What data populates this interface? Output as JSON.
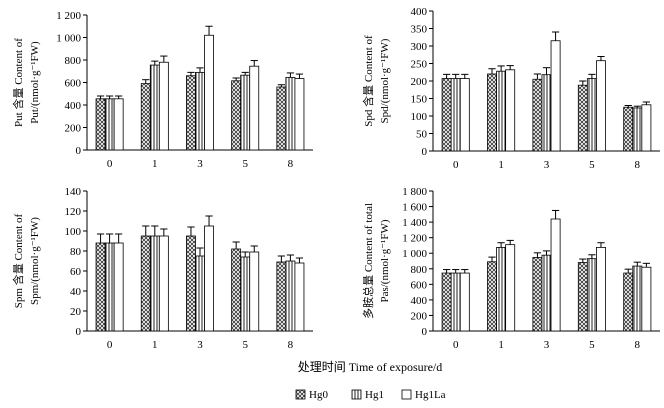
{
  "figure": {
    "shared_xlabel": "处理时间 Time of exposure/d",
    "legend": [
      {
        "name": "Hg0",
        "pattern": "crosshatch"
      },
      {
        "name": "Hg1",
        "pattern": "vertical"
      },
      {
        "name": "Hg1La",
        "pattern": "white"
      }
    ]
  },
  "chart_data": [
    {
      "type": "bar",
      "title": "",
      "xlabel": "处理时间 Time of exposure/d",
      "ylabel": [
        "Put 含量 Content of",
        "Put/(nmol·g⁻¹FW)"
      ],
      "ylim": [
        0,
        1200
      ],
      "yticks": [
        0,
        200,
        400,
        600,
        800,
        1000,
        1200
      ],
      "ytick_labels": [
        "0",
        "200",
        "400",
        "600",
        "800",
        "1 000",
        "1 200"
      ],
      "categories": [
        "0",
        "1",
        "3",
        "5",
        "8"
      ],
      "series": [
        {
          "name": "Hg0",
          "values": [
            455,
            590,
            660,
            615,
            560
          ],
          "errors": [
            25,
            35,
            30,
            25,
            20
          ]
        },
        {
          "name": "Hg1",
          "values": [
            455,
            755,
            690,
            665,
            645
          ],
          "errors": [
            25,
            35,
            40,
            25,
            40
          ]
        },
        {
          "name": "Hg1La",
          "values": [
            455,
            780,
            1020,
            745,
            635
          ],
          "errors": [
            25,
            55,
            80,
            50,
            40
          ]
        }
      ]
    },
    {
      "type": "bar",
      "title": "",
      "xlabel": "处理时间 Time of exposure/d",
      "ylabel": [
        "Spd 含量 Content of",
        "Spd/(nmol·g⁻¹FW)"
      ],
      "ylim": [
        0,
        400
      ],
      "yticks": [
        0,
        50,
        100,
        150,
        200,
        250,
        300,
        350,
        400
      ],
      "ytick_labels": [
        "0",
        "50",
        "100",
        "150",
        "200",
        "250",
        "300",
        "350",
        "400"
      ],
      "categories": [
        "0",
        "1",
        "3",
        "5",
        "8"
      ],
      "series": [
        {
          "name": "Hg0",
          "values": [
            207,
            220,
            205,
            188,
            125
          ],
          "errors": [
            12,
            15,
            15,
            12,
            5
          ]
        },
        {
          "name": "Hg1",
          "values": [
            207,
            228,
            218,
            207,
            123
          ],
          "errors": [
            12,
            15,
            20,
            12,
            5
          ]
        },
        {
          "name": "Hg1La",
          "values": [
            207,
            232,
            315,
            258,
            132
          ],
          "errors": [
            12,
            12,
            25,
            12,
            8
          ]
        }
      ]
    },
    {
      "type": "bar",
      "title": "",
      "xlabel": "处理时间 Time of exposure/d",
      "ylabel": [
        "Spm 含量 Content of",
        "Spm/(nmol·g⁻¹FW)"
      ],
      "ylim": [
        0,
        140
      ],
      "yticks": [
        0,
        20,
        40,
        60,
        80,
        100,
        120,
        140
      ],
      "ytick_labels": [
        "0",
        "20",
        "40",
        "60",
        "80",
        "100",
        "120",
        "140"
      ],
      "categories": [
        "0",
        "1",
        "3",
        "5",
        "8"
      ],
      "series": [
        {
          "name": "Hg0",
          "values": [
            88,
            95,
            95,
            82,
            69
          ],
          "errors": [
            9,
            10,
            9,
            7,
            6
          ]
        },
        {
          "name": "Hg1",
          "values": [
            88,
            95,
            75,
            74,
            70
          ],
          "errors": [
            9,
            10,
            8,
            5,
            6
          ]
        },
        {
          "name": "Hg1La",
          "values": [
            88,
            95,
            105,
            79,
            68
          ],
          "errors": [
            9,
            7,
            10,
            6,
            5
          ]
        }
      ]
    },
    {
      "type": "bar",
      "title": "",
      "xlabel": "处理时间 Time of exposure/d",
      "ylabel": [
        "多胺总量 Content of total",
        "Pas/(nmol·g⁻¹FW)"
      ],
      "ylim": [
        0,
        1800
      ],
      "yticks": [
        0,
        200,
        400,
        600,
        800,
        1000,
        1200,
        1400,
        1600,
        1800
      ],
      "ytick_labels": [
        "0",
        "200",
        "400",
        "600",
        "800",
        "1 000",
        "1 200",
        "1 400",
        "1 600",
        "1 800"
      ],
      "categories": [
        "0",
        "1",
        "3",
        "5",
        "8"
      ],
      "series": [
        {
          "name": "Hg0",
          "values": [
            745,
            890,
            945,
            880,
            745
          ],
          "errors": [
            45,
            60,
            60,
            45,
            50
          ]
        },
        {
          "name": "Hg1",
          "values": [
            745,
            1075,
            975,
            930,
            835
          ],
          "errors": [
            45,
            60,
            55,
            50,
            50
          ]
        },
        {
          "name": "Hg1La",
          "values": [
            745,
            1110,
            1440,
            1075,
            820
          ],
          "errors": [
            45,
            55,
            110,
            60,
            50
          ]
        }
      ]
    }
  ]
}
